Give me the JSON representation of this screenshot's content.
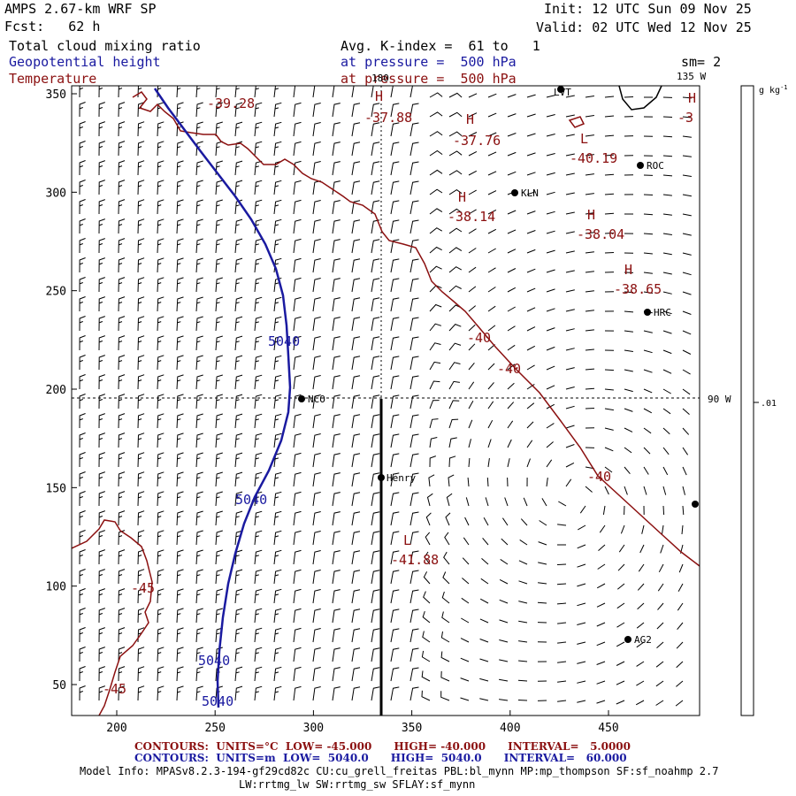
{
  "header": {
    "model": "AMPS 2.67-km WRF SP",
    "fcst": "Fcst:   62 h",
    "init": "Init: 12 UTC Sun 09 Nov 25",
    "valid": "Valid: 02 UTC Wed 12 Nov 25",
    "field1": "Total cloud mixing ratio",
    "field2": "Geopotential height",
    "field3": "Temperature",
    "avg": "Avg. K-index =  61 to   1",
    "pres1": "at pressure =  500 hPa",
    "pres2": "at pressure =  500 hPa",
    "sm": "sm= 2"
  },
  "map": {
    "lon_labels": [
      "180",
      "135 W",
      "90 W"
    ],
    "stations": [
      "LVT",
      "ROC",
      "KLN",
      "HRC",
      "NCO",
      "Henry",
      "AG2"
    ],
    "x_ticks": [
      "200",
      "250",
      "300",
      "350",
      "400",
      "450"
    ],
    "y_ticks": [
      "350",
      "300",
      "250",
      "200",
      "150",
      "100",
      "50"
    ],
    "height_labels": [
      "5040",
      "5040",
      "5040",
      "5040"
    ],
    "temp_labels": [
      "-40",
      "-40",
      "-40",
      "-45",
      "-45"
    ],
    "extrema": [
      {
        "type": "H",
        "value": "-37.88"
      },
      {
        "type": "H",
        "value": "-37.76"
      },
      {
        "type": "L",
        "value": "-40.19"
      },
      {
        "type": "H",
        "value": "-38.14"
      },
      {
        "type": "H",
        "value": "-38.04"
      },
      {
        "type": "H",
        "value": "-38.65"
      },
      {
        "type": "L",
        "value": "-41.88"
      },
      {
        "type": "H",
        "value": "-3"
      }
    ],
    "corner_value": "-39.28"
  },
  "colorbar": {
    "unit": "g kg",
    "unit_sup": "-1",
    "value": ".01"
  },
  "footer": {
    "temp_line": "CONTOURS:  UNITS=°C  LOW= -45.000      HIGH= -40.000      INTERVAL=   5.0000",
    "hgt_line": "CONTOURS:  UNITS=m  LOW=  5040.0      HIGH=  5040.0      INTERVAL=   60.000",
    "model_info": "Model Info: MPASv8.2.3-194-gf29cd82c CU:cu_grell_freitas PBL:bl_mynn MP:mp_thompson SF:sf_noahmp 2.7",
    "model_info2": "LW:rrtmg_lw SW:rrtmg_sw SFLAY:sf_mynn"
  },
  "colors": {
    "height": "#1a1aa0",
    "temperature": "#8b1010",
    "text": "#000000"
  }
}
